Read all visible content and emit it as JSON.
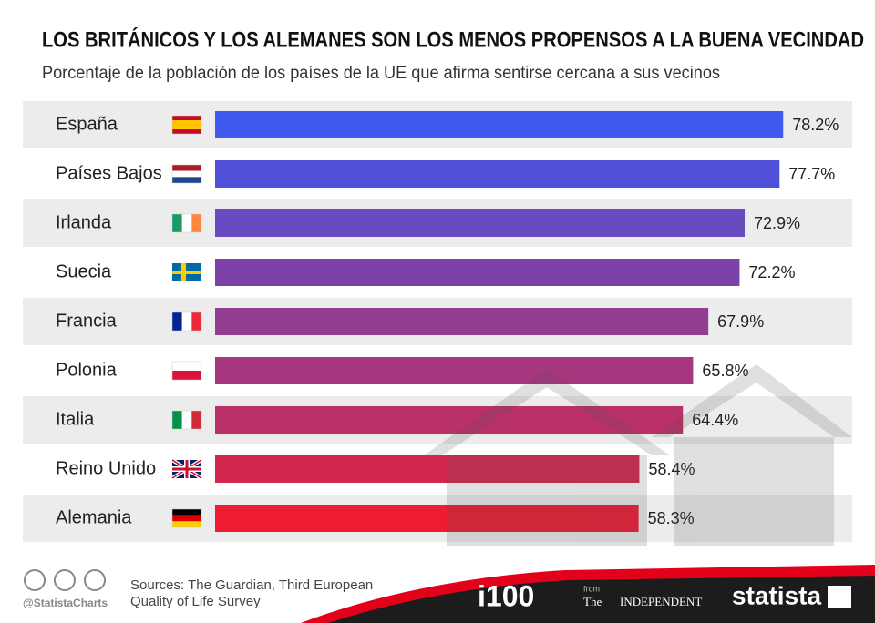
{
  "chart_data": {
    "type": "hbar",
    "title": "LOS BRITÁNICOS Y LOS ALEMANES SON LOS MENOS PROPENSOS A LA BUENA VECINDAD",
    "subtitle": "Porcentaje de la población de los países de la UE que afirma sentirse cercana a sus vecinos",
    "categories": [
      "España",
      "Países Bajos",
      "Irlanda",
      "Suecia",
      "Francia",
      "Polonia",
      "Italia",
      "Reino Unido",
      "Alemania"
    ],
    "values": [
      78.2,
      77.7,
      72.9,
      72.2,
      67.9,
      65.8,
      64.4,
      58.4,
      58.3
    ],
    "value_labels": [
      "78.2%",
      "77.7%",
      "72.9%",
      "72.2%",
      "67.9%",
      "65.8%",
      "64.4%",
      "58.4%",
      "58.3%"
    ],
    "colors": [
      "#4059ee",
      "#5050d8",
      "#6a4ac0",
      "#7d42a8",
      "#923c92",
      "#a6367e",
      "#ba3068",
      "#d22850",
      "#ed1c33"
    ]
  },
  "footer": {
    "handle": "@StatistaCharts",
    "source_line1": "Sources: The Guardian, Third European",
    "source_line2": "Quality of Life Survey",
    "partner": "i100",
    "from": "from",
    "publisher": "INDEPENDENT",
    "publisher_prefix": "The",
    "brand": "statista"
  }
}
